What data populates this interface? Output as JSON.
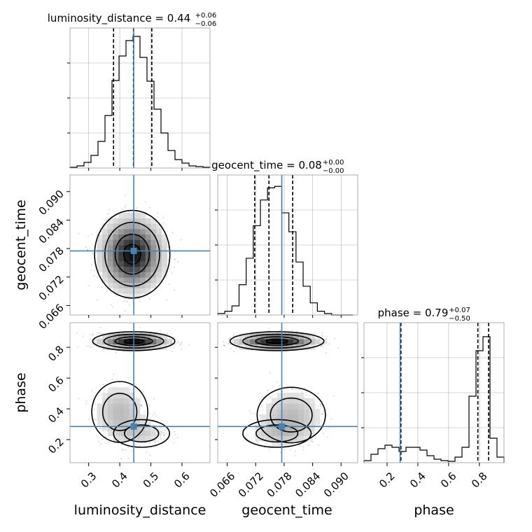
{
  "chart_data": {
    "type": "corner",
    "parameters": [
      "luminosity_distance",
      "geocent_time",
      "phase"
    ],
    "truth": {
      "luminosity_distance": 0.445,
      "geocent_time": 0.0775,
      "phase": 0.285
    },
    "axes": {
      "luminosity_distance": {
        "range": [
          0.24,
          0.69
        ],
        "ticks": [
          0.3,
          0.4,
          0.5,
          0.6
        ],
        "tick_labels": [
          "0.3",
          "0.4",
          "0.5",
          "0.6"
        ]
      },
      "geocent_time": {
        "range": [
          0.064,
          0.0935
        ],
        "ticks": [
          0.066,
          0.072,
          0.078,
          0.084,
          0.09
        ],
        "tick_labels": [
          "0.066",
          "0.072",
          "0.078",
          "0.084",
          "0.090"
        ]
      },
      "phase": {
        "range": [
          0.05,
          0.96
        ],
        "ticks": [
          0.2,
          0.4,
          0.6,
          0.8
        ],
        "tick_labels": [
          "0.2",
          "0.4",
          "0.6",
          "0.8"
        ]
      }
    },
    "diag": [
      {
        "param": "luminosity_distance",
        "title_main": "luminosity_distance = 0.44",
        "title_sup": "+0.06",
        "title_sub": "−0.06",
        "quantiles": [
          0.38,
          0.444,
          0.503
        ],
        "bin_edges": [
          0.24,
          0.2625,
          0.285,
          0.3075,
          0.33,
          0.3525,
          0.375,
          0.3975,
          0.42,
          0.4425,
          0.465,
          0.4875,
          0.51,
          0.5325,
          0.555,
          0.5775,
          0.6,
          0.6225,
          0.645,
          0.6675,
          0.69
        ],
        "counts": [
          1,
          3,
          8,
          18,
          38,
          75,
          125,
          160,
          182,
          188,
          158,
          124,
          84,
          50,
          25,
          12,
          7,
          3,
          2,
          1
        ],
        "ymax": 200
      },
      {
        "param": "geocent_time",
        "title_main": "geocent_time = 0.08",
        "title_sup": "+0.00",
        "title_sub": "−0.00",
        "quantiles": [
          0.0718,
          0.0748,
          0.0798
        ],
        "bin_edges": [
          0.064,
          0.0655,
          0.067,
          0.0685,
          0.07,
          0.0715,
          0.073,
          0.0745,
          0.076,
          0.0775,
          0.079,
          0.0805,
          0.082,
          0.0835,
          0.085,
          0.0865,
          0.088,
          0.0895,
          0.091,
          0.0925
        ],
        "counts": [
          2,
          5,
          12,
          40,
          75,
          118,
          152,
          168,
          170,
          135,
          110,
          70,
          38,
          16,
          5,
          2,
          0,
          0,
          0
        ],
        "ymax": 185
      },
      {
        "param": "phase",
        "title_main": "phase = 0.79",
        "title_sup": "+0.07",
        "title_sub": "−0.50",
        "quantiles": [
          0.29,
          0.79,
          0.86
        ],
        "bin_edges": [
          0.05,
          0.0955,
          0.141,
          0.1865,
          0.232,
          0.2775,
          0.323,
          0.3685,
          0.414,
          0.4595,
          0.505,
          0.5505,
          0.596,
          0.6415,
          0.687,
          0.7325,
          0.778,
          0.8235,
          0.869,
          0.9145,
          0.96
        ],
        "counts": [
          3,
          12,
          20,
          25,
          22,
          16,
          22,
          22,
          18,
          10,
          5,
          3,
          2,
          8,
          22,
          95,
          160,
          180,
          35,
          8
        ],
        "ymax": 200
      }
    ],
    "pairs": [
      {
        "x": "luminosity_distance",
        "y": "geocent_time",
        "blobs": [
          {
            "cx": 0.44,
            "cy": 0.0768,
            "sx": 0.055,
            "sy": 0.0042,
            "w": 1.0
          }
        ]
      },
      {
        "x": "luminosity_distance",
        "y": "phase",
        "blobs": [
          {
            "cx": 0.445,
            "cy": 0.84,
            "sx": 0.06,
            "sy": 0.028,
            "w": 1.0
          },
          {
            "cx": 0.4,
            "cy": 0.38,
            "sx": 0.05,
            "sy": 0.11,
            "w": 0.28
          },
          {
            "cx": 0.47,
            "cy": 0.24,
            "sx": 0.05,
            "sy": 0.05,
            "w": 0.18
          }
        ]
      },
      {
        "x": "geocent_time",
        "y": "phase",
        "blobs": [
          {
            "cx": 0.0765,
            "cy": 0.84,
            "sx": 0.0045,
            "sy": 0.028,
            "w": 1.0
          },
          {
            "cx": 0.0795,
            "cy": 0.36,
            "sx": 0.004,
            "sy": 0.1,
            "w": 0.28
          },
          {
            "cx": 0.0765,
            "cy": 0.24,
            "sx": 0.004,
            "sy": 0.05,
            "w": 0.18
          }
        ]
      }
    ],
    "xlabels": [
      "luminosity_distance",
      "geocent_time",
      "phase"
    ],
    "ylabels": [
      "geocent_time",
      "phase"
    ],
    "colors": {
      "truth": "#4682b4",
      "hist": "#000000",
      "grid": "#b0b0b0",
      "quantile": "#000000"
    }
  }
}
